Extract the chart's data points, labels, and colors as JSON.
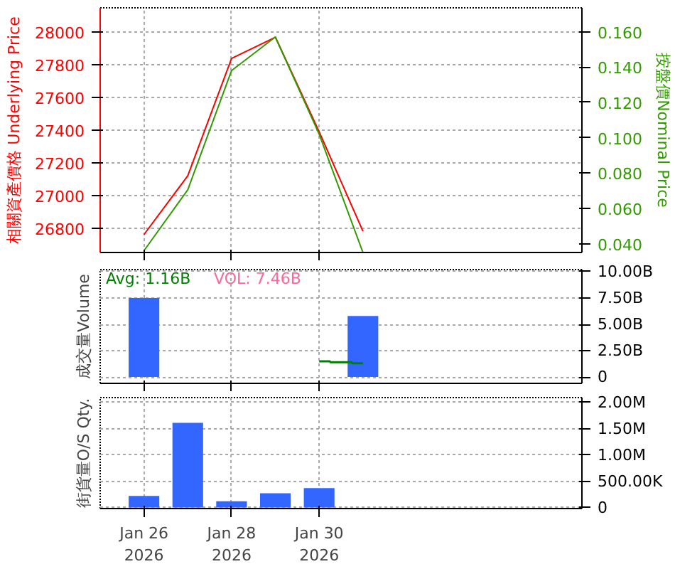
{
  "chart_data": [
    {
      "type": "line",
      "ylabel": "相關資產價格 Underlying Price",
      "y2label": "按盤價Nominal Price",
      "x": [
        "2026-01-26",
        "2026-01-27",
        "2026-01-28",
        "2026-01-29",
        "2026-01-30",
        "2026-01-31"
      ],
      "series": [
        {
          "color": "#ff0000",
          "values": [
            26760,
            27120,
            27840,
            27970,
            27390,
            26780
          ]
        },
        {
          "color": "#339900",
          "axis": "y2",
          "values": [
            0.036,
            0.0705,
            0.138,
            0.157,
            0.102,
            0.035
          ]
        }
      ],
      "xlim": [
        "2026-01-25",
        "2026-02-05"
      ],
      "xticks": [
        {
          "value": "2026-01-26",
          "label": null
        },
        {
          "value": "2026-01-28",
          "label": null
        },
        {
          "value": "2026-01-30",
          "label": null
        }
      ],
      "ylim": [
        26650,
        28150
      ],
      "yticks": [
        26800,
        27000,
        27200,
        27400,
        27600,
        27800,
        28000
      ],
      "y2lim": [
        0.035,
        0.1735
      ],
      "y2ticks": [
        {
          "value": 0.04,
          "label": "0.040"
        },
        {
          "value": 0.06,
          "label": "0.060"
        },
        {
          "value": 0.08,
          "label": "0.080"
        },
        {
          "value": 0.1,
          "label": "0.100"
        },
        {
          "value": 0.12,
          "label": "0.120"
        },
        {
          "value": 0.14,
          "label": "0.140"
        },
        {
          "value": 0.16,
          "label": "0.160"
        }
      ],
      "grid": true,
      "tick_labels": "y"
    },
    {
      "type": "bar",
      "ylabel": "成交量Volume",
      "annotations": [
        "Avg: 1.16B",
        "VOL: 7.46B"
      ],
      "series": [
        {
          "color": "#3366ff",
          "axis": "y2",
          "x": [
            "2026-01-26",
            "2026-01-31"
          ],
          "values": [
            7500000000,
            5800000000
          ]
        },
        {
          "type": "step",
          "color": "#008000",
          "axis": "y2",
          "x": [
            "2026-01-30",
            "2026-01-30T06:00",
            "2026-01-30T18:00",
            "2026-01-31"
          ],
          "values": [
            1500000000,
            1400000000,
            1300000000,
            1300000000
          ]
        }
      ],
      "xlim": [
        "2026-01-25",
        "2026-02-05"
      ],
      "xticks": [
        {
          "value": "2026-01-26",
          "label": null
        },
        {
          "value": "2026-01-28",
          "label": null
        },
        {
          "value": "2026-01-30",
          "label": null
        }
      ],
      "y2lim": [
        -600000000,
        10200000000
      ],
      "y2ticks": [
        0,
        {
          "value": 2500000000,
          "label": "2.50B"
        },
        {
          "value": 5000000000,
          "label": "5.00B"
        },
        {
          "value": 7500000000,
          "label": "7.50B"
        },
        {
          "value": 10000000000,
          "label": "10.00B"
        }
      ],
      "grid": true,
      "tick_labels": "y"
    },
    {
      "type": "bar",
      "ylabel": "街貨量O/S Qty.",
      "x": [
        "2026-01-26",
        "2026-01-27",
        "2026-01-28",
        "2026-01-29",
        "2026-01-30"
      ],
      "series": [
        {
          "color": "#3366ff",
          "axis": "y2",
          "values": [
            220000,
            1610000,
            120000,
            270000,
            370000
          ]
        }
      ],
      "xlim": [
        "2026-01-25",
        "2026-02-05"
      ],
      "xticks": [
        {
          "value": "2026-01-26",
          "label": "Jan 26\n2026"
        },
        {
          "value": "2026-01-28",
          "label": "Jan 28\n2026"
        },
        {
          "value": "2026-01-30",
          "label": "Jan 30\n2026"
        }
      ],
      "y2lim": [
        -20000,
        2090000
      ],
      "y2ticks": [
        0,
        {
          "value": 500000,
          "label": "500.00K"
        },
        {
          "value": 1000000,
          "label": "1.00M"
        },
        {
          "value": 1500000,
          "label": "1.50M"
        },
        {
          "value": 2000000,
          "label": "2.00M"
        }
      ],
      "grid": true
    }
  ]
}
